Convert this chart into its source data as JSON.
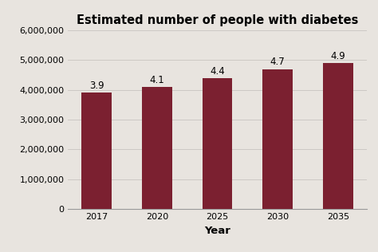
{
  "title": "Estimated number of people with diabetes",
  "xlabel": "Year",
  "ylabel": "",
  "categories": [
    "2017",
    "2020",
    "2025",
    "2030",
    "2035"
  ],
  "values": [
    3900000,
    4100000,
    4400000,
    4700000,
    4900000
  ],
  "labels": [
    "3.9",
    "4.1",
    "4.4",
    "4.7",
    "4.9"
  ],
  "bar_color": "#7B2030",
  "ylim": [
    0,
    6000000
  ],
  "yticks": [
    0,
    1000000,
    2000000,
    3000000,
    4000000,
    5000000,
    6000000
  ],
  "background_color": "#e8e4df",
  "title_fontsize": 10.5,
  "label_fontsize": 8.5,
  "tick_fontsize": 8,
  "xlabel_fontsize": 9.5,
  "bar_width": 0.5
}
